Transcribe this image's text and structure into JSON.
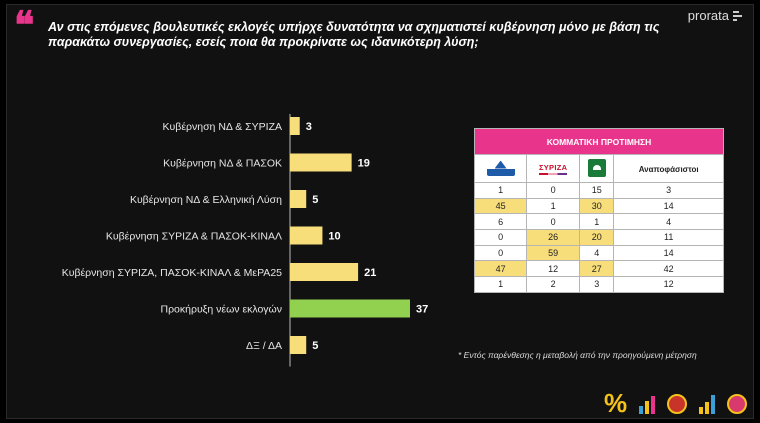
{
  "question": "Αν στις επόμενες βουλευτικές εκλογές υπήρχε δυνατότητα να σχηματιστεί κυβέρνηση μόνο με βάση τις παρακάτω συνεργασίες, εσείς ποια θα προκρίνατε ως ιδανικότερη λύση;",
  "brand": {
    "name": "prorata"
  },
  "chart_data": {
    "type": "bar",
    "orientation": "horizontal",
    "categories": [
      "Κυβέρνηση ΝΔ & ΣΥΡΙΖΑ",
      "Κυβέρνηση ΝΔ & ΠΑΣΟΚ",
      "Κυβέρνηση ΝΔ & Ελληνική Λύση",
      "Κυβέρνηση ΣΥΡΙΖΑ & ΠΑΣΟΚ-ΚΙΝΑΛ",
      "Κυβέρνηση ΣΥΡΙΖΑ, ΠΑΣΟΚ-ΚΙΝΑΛ & ΜεΡΑ25",
      "Προκήρυξη νέων εκλογών",
      "ΔΞ / ΔΑ"
    ],
    "values": [
      3,
      19,
      5,
      10,
      21,
      37,
      5
    ],
    "colors": [
      "#f8de7a",
      "#f8de7a",
      "#f8de7a",
      "#f8de7a",
      "#f8de7a",
      "#92d050",
      "#f8de7a"
    ],
    "xlim": [
      0,
      37
    ],
    "grid": false,
    "title": "",
    "xlabel": "",
    "ylabel": ""
  },
  "party_table": {
    "title": "ΚΟΜΜΑΤΙΚΗ ΠΡΟΤΙΜΗΣΗ",
    "columns": [
      {
        "logo": "nd-logo"
      },
      {
        "label": "ΣΥΡΙΖΑ",
        "logo": "syriza-logo"
      },
      {
        "logo": "pasok-logo"
      },
      {
        "label": "Αναποφάσιστοι"
      }
    ],
    "rows": [
      [
        "1",
        "0",
        "15",
        "3"
      ],
      [
        "45",
        "1",
        "30",
        "14"
      ],
      [
        "6",
        "0",
        "1",
        "4"
      ],
      [
        "0",
        "26",
        "20",
        "11"
      ],
      [
        "0",
        "59",
        "4",
        "14"
      ],
      [
        "47",
        "12",
        "27",
        "42"
      ],
      [
        "1",
        "2",
        "3",
        "12"
      ]
    ],
    "highlight_color": "#f8de7a",
    "header_color": "#e8348a"
  },
  "footnote": "* Εντός παρένθεσης η μεταβολή από την προηγούμενη μέτρηση",
  "footer_icons": [
    "percent-icon",
    "bar-chart-icon",
    "party-circle-icon",
    "trend-icon",
    "home-icon"
  ],
  "accent_color": "#e8348a"
}
